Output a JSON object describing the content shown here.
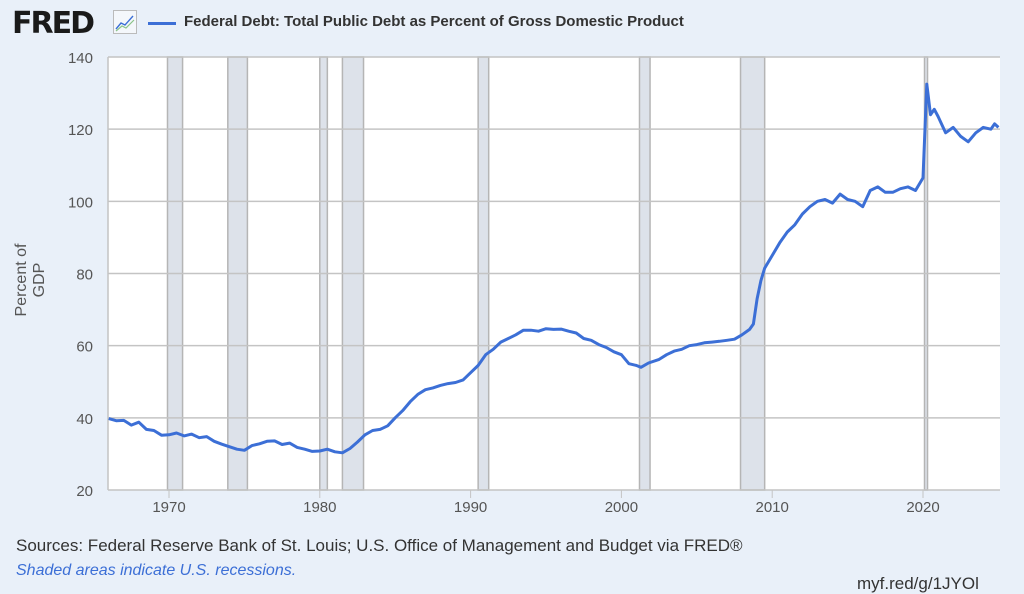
{
  "header": {
    "logo": "FRED",
    "legend": "Federal Debt: Total Public Debt as Percent of Gross Domestic Product"
  },
  "footer": {
    "sources": "Sources: Federal Reserve Bank of St. Louis; U.S. Office of Management and Budget via FRED®",
    "recessions_note": "Shaded areas indicate U.S. recessions.",
    "short_url": "myf.red/g/1JYOl"
  },
  "chart_data": {
    "type": "line",
    "title": "",
    "xlabel": "",
    "ylabel": "Percent of GDP",
    "xlim": [
      1966,
      2025.1
    ],
    "ylim": [
      20,
      140
    ],
    "yticks": [
      "20",
      "40",
      "60",
      "80",
      "100",
      "120",
      "140"
    ],
    "xticks": [
      "1970",
      "1980",
      "1990",
      "2000",
      "2010",
      "2020"
    ],
    "grid": true,
    "line_color": "#3c6fd6",
    "recession_color": "#dde2ea",
    "recessions": [
      [
        1969.9,
        1970.9
      ],
      [
        1973.9,
        1975.2
      ],
      [
        1980.0,
        1980.5
      ],
      [
        1981.5,
        1982.9
      ],
      [
        1990.5,
        1991.2
      ],
      [
        2001.2,
        2001.9
      ],
      [
        2007.9,
        2009.5
      ],
      [
        2020.1,
        2020.3
      ]
    ],
    "series": [
      {
        "name": "Federal Debt: Total Public Debt as Percent of Gross Domestic Product",
        "points": [
          [
            1966.0,
            39.8
          ],
          [
            1966.5,
            39.2
          ],
          [
            1967.0,
            39.3
          ],
          [
            1967.5,
            38.0
          ],
          [
            1968.0,
            38.8
          ],
          [
            1968.5,
            36.8
          ],
          [
            1969.0,
            36.5
          ],
          [
            1969.5,
            35.2
          ],
          [
            1970.0,
            35.3
          ],
          [
            1970.5,
            35.8
          ],
          [
            1971.0,
            35.0
          ],
          [
            1971.5,
            35.5
          ],
          [
            1972.0,
            34.5
          ],
          [
            1972.5,
            34.8
          ],
          [
            1973.0,
            33.5
          ],
          [
            1973.5,
            32.7
          ],
          [
            1974.0,
            32.0
          ],
          [
            1974.5,
            31.3
          ],
          [
            1975.0,
            31.0
          ],
          [
            1975.5,
            32.3
          ],
          [
            1976.0,
            32.8
          ],
          [
            1976.5,
            33.5
          ],
          [
            1977.0,
            33.6
          ],
          [
            1977.5,
            32.6
          ],
          [
            1978.0,
            33.0
          ],
          [
            1978.5,
            31.8
          ],
          [
            1979.0,
            31.3
          ],
          [
            1979.5,
            30.7
          ],
          [
            1980.0,
            30.8
          ],
          [
            1980.5,
            31.3
          ],
          [
            1981.0,
            30.6
          ],
          [
            1981.5,
            30.3
          ],
          [
            1982.0,
            31.5
          ],
          [
            1982.5,
            33.3
          ],
          [
            1983.0,
            35.3
          ],
          [
            1983.5,
            36.5
          ],
          [
            1984.0,
            36.8
          ],
          [
            1984.5,
            37.8
          ],
          [
            1985.0,
            40.0
          ],
          [
            1985.5,
            42.0
          ],
          [
            1986.0,
            44.5
          ],
          [
            1986.5,
            46.5
          ],
          [
            1987.0,
            47.8
          ],
          [
            1987.5,
            48.3
          ],
          [
            1988.0,
            49.0
          ],
          [
            1988.5,
            49.5
          ],
          [
            1989.0,
            49.8
          ],
          [
            1989.5,
            50.5
          ],
          [
            1990.0,
            52.5
          ],
          [
            1990.5,
            54.5
          ],
          [
            1991.0,
            57.5
          ],
          [
            1991.5,
            59.0
          ],
          [
            1992.0,
            61.0
          ],
          [
            1992.5,
            62.0
          ],
          [
            1993.0,
            63.0
          ],
          [
            1993.5,
            64.3
          ],
          [
            1994.0,
            64.3
          ],
          [
            1994.5,
            64.0
          ],
          [
            1995.0,
            64.7
          ],
          [
            1995.5,
            64.5
          ],
          [
            1996.0,
            64.6
          ],
          [
            1996.5,
            64.0
          ],
          [
            1997.0,
            63.5
          ],
          [
            1997.5,
            62.0
          ],
          [
            1998.0,
            61.5
          ],
          [
            1998.5,
            60.3
          ],
          [
            1999.0,
            59.5
          ],
          [
            1999.5,
            58.3
          ],
          [
            2000.0,
            57.5
          ],
          [
            2000.5,
            55.0
          ],
          [
            2001.0,
            54.5
          ],
          [
            2001.3,
            54.0
          ],
          [
            2001.8,
            55.2
          ],
          [
            2002.5,
            56.2
          ],
          [
            2003.0,
            57.5
          ],
          [
            2003.5,
            58.5
          ],
          [
            2004.0,
            59.0
          ],
          [
            2004.5,
            60.0
          ],
          [
            2005.0,
            60.3
          ],
          [
            2005.5,
            60.8
          ],
          [
            2006.0,
            61.0
          ],
          [
            2006.5,
            61.2
          ],
          [
            2007.0,
            61.5
          ],
          [
            2007.5,
            61.8
          ],
          [
            2008.0,
            63.0
          ],
          [
            2008.5,
            64.5
          ],
          [
            2008.75,
            66.0
          ],
          [
            2009.0,
            73.0
          ],
          [
            2009.25,
            78.0
          ],
          [
            2009.5,
            81.5
          ],
          [
            2010.0,
            85.0
          ],
          [
            2010.5,
            88.5
          ],
          [
            2011.0,
            91.5
          ],
          [
            2011.5,
            93.5
          ],
          [
            2012.0,
            96.5
          ],
          [
            2012.5,
            98.5
          ],
          [
            2013.0,
            100.0
          ],
          [
            2013.5,
            100.5
          ],
          [
            2014.0,
            99.5
          ],
          [
            2014.5,
            102.0
          ],
          [
            2015.0,
            100.5
          ],
          [
            2015.5,
            100.0
          ],
          [
            2016.0,
            98.5
          ],
          [
            2016.5,
            103.0
          ],
          [
            2017.0,
            104.0
          ],
          [
            2017.5,
            102.5
          ],
          [
            2018.0,
            102.5
          ],
          [
            2018.5,
            103.5
          ],
          [
            2019.0,
            104.0
          ],
          [
            2019.5,
            103.0
          ],
          [
            2020.0,
            106.5
          ],
          [
            2020.25,
            132.5
          ],
          [
            2020.5,
            124.0
          ],
          [
            2020.75,
            125.5
          ],
          [
            2021.0,
            123.5
          ],
          [
            2021.5,
            119.0
          ],
          [
            2022.0,
            120.5
          ],
          [
            2022.5,
            118.0
          ],
          [
            2023.0,
            116.5
          ],
          [
            2023.5,
            119.0
          ],
          [
            2024.0,
            120.5
          ],
          [
            2024.5,
            120.0
          ],
          [
            2024.75,
            121.5
          ],
          [
            2025.0,
            120.5
          ]
        ]
      }
    ]
  }
}
